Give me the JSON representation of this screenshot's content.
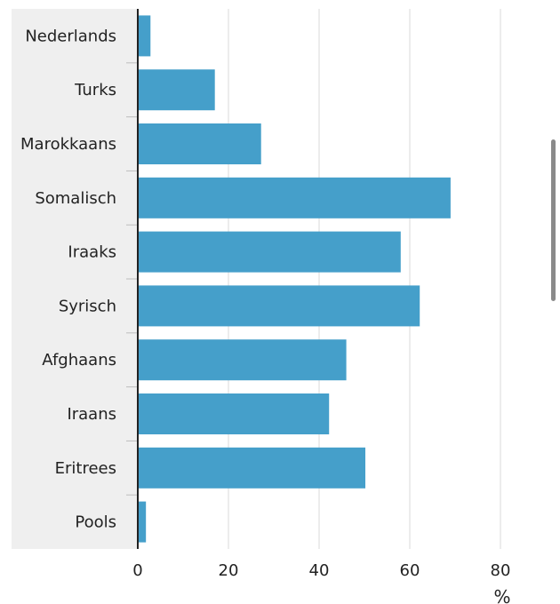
{
  "chart_data": {
    "type": "bar",
    "orientation": "horizontal",
    "categories": [
      "Nederlands",
      "Turks",
      "Marokkaans",
      "Somalisch",
      "Iraaks",
      "Syrisch",
      "Afghaans",
      "Iraans",
      "Eritrees",
      "Pools"
    ],
    "values": [
      2.8,
      17,
      27.2,
      69,
      58,
      62.2,
      46,
      42.2,
      50.2,
      1.8
    ],
    "xticks": [
      "0",
      "20",
      "40",
      "60",
      "80"
    ],
    "xlim": [
      0,
      80
    ],
    "unit_label": "%",
    "grid": true,
    "colors": {
      "bar": "#459fca",
      "label_panel": "#efefef",
      "grid": "#dadada",
      "axis": "#222222"
    }
  }
}
